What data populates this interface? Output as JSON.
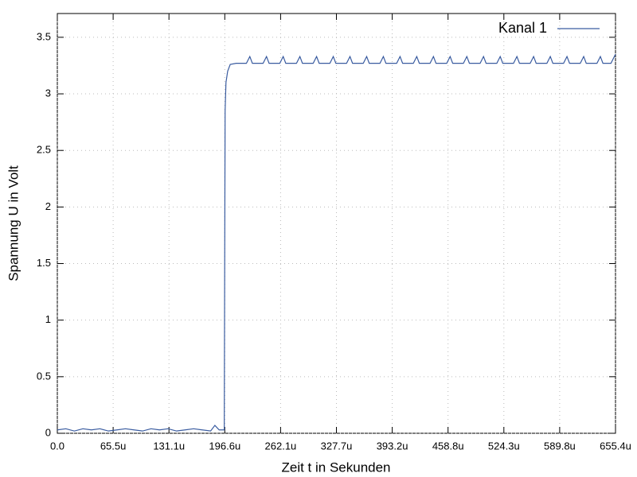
{
  "chart_data": {
    "type": "line",
    "xlabel": "Zeit t in Sekunden",
    "ylabel": "Spannung U in Volt",
    "series": [
      {
        "name": "Kanal 1",
        "color": "#3a5ca0",
        "x": [
          0,
          1e-05,
          2e-05,
          3e-05,
          4e-05,
          5e-05,
          6e-05,
          7e-05,
          8e-05,
          9e-05,
          0.0001,
          0.00011,
          0.00012,
          0.00013,
          0.00014,
          0.00015,
          0.00016,
          0.00017,
          0.00018,
          0.000185,
          0.00019,
          0.000196,
          0.000197,
          0.000198,
          0.0002,
          0.000203,
          0.00021,
          0.000222,
          0.000226,
          0.000229,
          0.0002416,
          0.0002456,
          0.0002486,
          0.0002612,
          0.0002652,
          0.0002682,
          0.0002808,
          0.0002848,
          0.0002878,
          0.0003004,
          0.0003044,
          0.0003074,
          0.00032,
          0.000324,
          0.000327,
          0.0003396,
          0.0003436,
          0.0003466,
          0.0003592,
          0.0003632,
          0.0003662,
          0.0003788,
          0.0003828,
          0.0003858,
          0.0003984,
          0.0004024,
          0.0004054,
          0.000418,
          0.000422,
          0.000425,
          0.0004376,
          0.0004416,
          0.0004446,
          0.0004572,
          0.0004612,
          0.0004642,
          0.0004768,
          0.0004808,
          0.0004838,
          0.0004964,
          0.0005004,
          0.0005034,
          0.000516,
          0.00052,
          0.000523,
          0.0005356,
          0.0005396,
          0.0005426,
          0.0005552,
          0.0005592,
          0.0005622,
          0.0005748,
          0.0005788,
          0.0005818,
          0.0005944,
          0.0005984,
          0.0006014,
          0.000614,
          0.000618,
          0.000621,
          0.0006336,
          0.0006376,
          0.0006406,
          0.00065,
          0.00065536
        ],
        "values": [
          0.03,
          0.04,
          0.02,
          0.04,
          0.03,
          0.04,
          0.02,
          0.03,
          0.04,
          0.03,
          0.02,
          0.04,
          0.03,
          0.04,
          0.02,
          0.03,
          0.04,
          0.03,
          0.02,
          0.07,
          0.03,
          0.03,
          2.85,
          3.1,
          3.2,
          3.26,
          3.27,
          3.27,
          3.33,
          3.27,
          3.27,
          3.33,
          3.27,
          3.27,
          3.33,
          3.27,
          3.27,
          3.33,
          3.27,
          3.27,
          3.33,
          3.27,
          3.27,
          3.33,
          3.27,
          3.27,
          3.33,
          3.27,
          3.27,
          3.33,
          3.27,
          3.27,
          3.33,
          3.27,
          3.27,
          3.33,
          3.27,
          3.27,
          3.33,
          3.27,
          3.27,
          3.33,
          3.27,
          3.27,
          3.33,
          3.27,
          3.27,
          3.33,
          3.27,
          3.27,
          3.33,
          3.27,
          3.27,
          3.33,
          3.27,
          3.27,
          3.33,
          3.27,
          3.27,
          3.33,
          3.27,
          3.27,
          3.33,
          3.27,
          3.27,
          3.33,
          3.27,
          3.27,
          3.33,
          3.27,
          3.27,
          3.33,
          3.27,
          3.27,
          3.35
        ]
      }
    ],
    "xlim": [
      0,
      0.00065536
    ],
    "xticks": [
      {
        "value": 0,
        "label": "0.0"
      },
      {
        "value": 6.5536e-05,
        "label": "65.5u"
      },
      {
        "value": 0.000131072,
        "label": "131.1u"
      },
      {
        "value": 0.000196608,
        "label": "196.6u"
      },
      {
        "value": 0.000262144,
        "label": "262.1u"
      },
      {
        "value": 0.00032768,
        "label": "327.7u"
      },
      {
        "value": 0.000393216,
        "label": "393.2u"
      },
      {
        "value": 0.000458752,
        "label": "458.8u"
      },
      {
        "value": 0.000524288,
        "label": "524.3u"
      },
      {
        "value": 0.000589824,
        "label": "589.8u"
      },
      {
        "value": 0.00065536,
        "label": "655.4u"
      }
    ],
    "ylim": [
      0,
      3.71
    ],
    "yticks": [
      0,
      0.5,
      1,
      1.5,
      2,
      2.5,
      3,
      3.5
    ],
    "grid": true,
    "legend": "top-right"
  }
}
